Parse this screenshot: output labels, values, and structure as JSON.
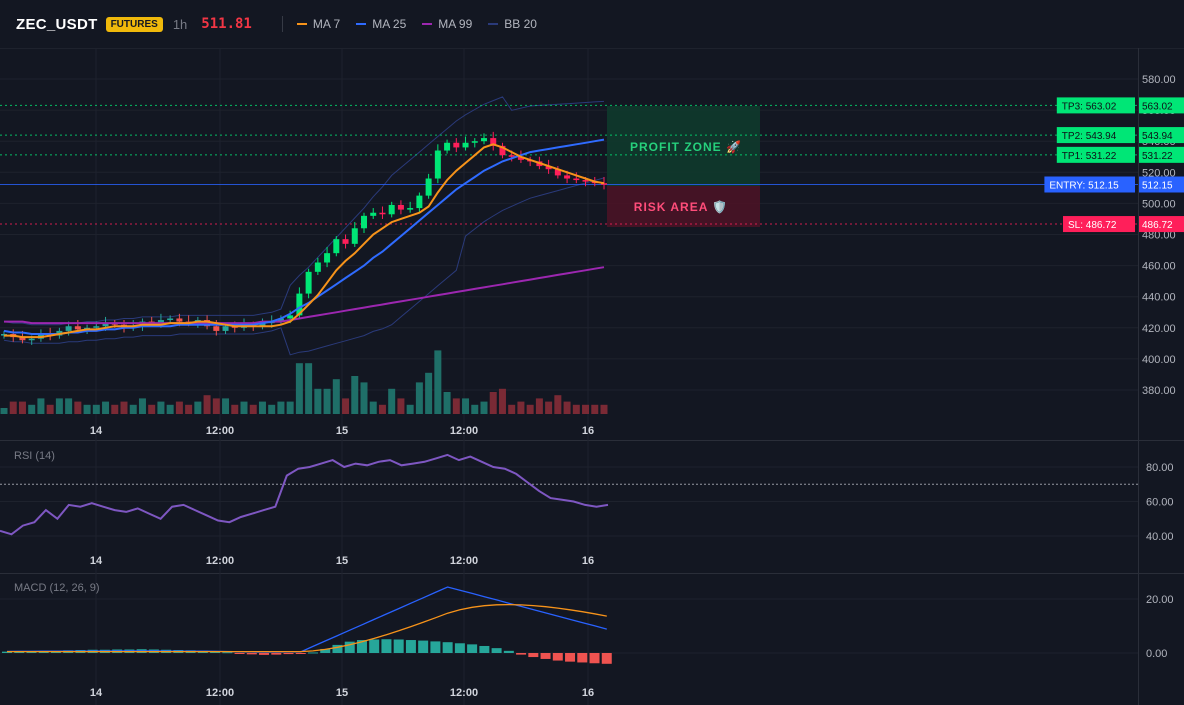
{
  "header": {
    "symbol": "ZEC_USDT",
    "badge": "FUTURES",
    "timeframe": "1h",
    "last_price": "511.81",
    "legend": [
      {
        "label": "MA 7",
        "color": "#f7931a"
      },
      {
        "label": "MA 25",
        "color": "#2f6bff"
      },
      {
        "label": "MA 99",
        "color": "#9c27b0"
      },
      {
        "label": "BB 20",
        "color": "#2a3a7a"
      }
    ]
  },
  "colors": {
    "background": "#131722",
    "up": "#26a69a",
    "down": "#ef5350",
    "up_bright": "#00e676",
    "down_bright": "#ff1f5a",
    "grid": "#1e222d",
    "entry": "#2962ff",
    "sl": "#ff1f5a",
    "tp": "#00e676"
  },
  "panes": {
    "price": {
      "name": "",
      "y_ticks": [
        "580.00",
        "560.00",
        "540.00",
        "520.00",
        "500.00",
        "480.00",
        "460.00",
        "440.00",
        "420.00",
        "400.00",
        "380.00"
      ]
    },
    "rsi": {
      "name": "RSI (14)",
      "y_ticks": [
        "80.00",
        "60.00",
        "40.00"
      ],
      "level": 70
    },
    "macd": {
      "name": "MACD (12, 26, 9)",
      "y_ticks": [
        "20.00",
        "0.00"
      ]
    }
  },
  "x_axis": [
    "14",
    "12:00",
    "15",
    "12:00",
    "16"
  ],
  "zones": {
    "profit": "PROFIT ZONE 🚀",
    "risk": "RISK AREA 🛡️"
  },
  "levels": [
    {
      "name": "tp3",
      "left": "TP3: 563.02",
      "right": "563.02",
      "value": 563.02,
      "color": "#00e676",
      "text": "#0d1117"
    },
    {
      "name": "tp2",
      "left": "TP2: 543.94",
      "right": "543.94",
      "value": 543.94,
      "color": "#00e676",
      "text": "#0d1117"
    },
    {
      "name": "tp1",
      "left": "TP1: 531.22",
      "right": "531.22",
      "value": 531.22,
      "color": "#00e676",
      "text": "#0d1117"
    },
    {
      "name": "entry",
      "left": "ENTRY: 512.15",
      "right": "512.15",
      "value": 512.15,
      "color": "#2962ff",
      "text": "#ffffff"
    },
    {
      "name": "sl",
      "left": "SL: 486.72",
      "right": "486.72",
      "value": 486.72,
      "color": "#ff1f5a",
      "text": "#ffffff"
    }
  ],
  "chart_data": {
    "type": "candlestick",
    "timeframe": "1h",
    "candles_close": [
      416,
      414,
      412,
      413,
      416,
      415,
      418,
      421,
      419,
      420,
      421,
      423,
      422,
      420,
      421,
      424,
      423,
      425,
      426,
      424,
      423,
      425,
      421,
      418,
      421,
      420,
      422,
      421,
      423,
      424,
      426,
      428,
      442,
      456,
      462,
      468,
      477,
      474,
      484,
      492,
      494,
      493,
      499,
      496,
      497,
      505,
      516,
      534,
      539,
      536,
      539,
      540,
      542,
      537,
      531,
      530,
      528,
      527,
      524,
      522,
      518,
      516,
      515,
      514,
      513,
      512
    ],
    "ma7": [
      415,
      415,
      414,
      414,
      414,
      415,
      416,
      417,
      418,
      419,
      419,
      420,
      421,
      421,
      421,
      422,
      422,
      422,
      423,
      423,
      423,
      424,
      424,
      423,
      422,
      421,
      421,
      421,
      421,
      421,
      422,
      424,
      429,
      435,
      441,
      449,
      457,
      463,
      468,
      474,
      480,
      484,
      488,
      490,
      492,
      494,
      498,
      507,
      515,
      521,
      526,
      531,
      536,
      538,
      536,
      533,
      530,
      528,
      526,
      524,
      522,
      520,
      518,
      516,
      514,
      513
    ],
    "ma25": [
      418,
      417,
      417,
      416,
      416,
      416,
      416,
      417,
      417,
      418,
      418,
      419,
      419,
      420,
      420,
      421,
      421,
      421,
      421,
      422,
      422,
      422,
      422,
      422,
      422,
      422,
      422,
      422,
      423,
      424,
      426,
      429,
      433,
      436,
      440,
      444,
      448,
      452,
      456,
      460,
      465,
      469,
      474,
      479,
      484,
      489,
      494,
      499,
      504,
      509,
      513,
      517,
      521,
      524,
      527,
      529,
      531,
      533,
      534,
      535,
      536,
      537,
      538,
      539,
      540,
      541
    ],
    "ma99": [
      424,
      424,
      424,
      423,
      423,
      423,
      423,
      423,
      423,
      423,
      423,
      423,
      423,
      423,
      423,
      423,
      423,
      423,
      423,
      423,
      423,
      423,
      423,
      423,
      423,
      423,
      423,
      423,
      424,
      424,
      424,
      425,
      426,
      427,
      428,
      429,
      430,
      431,
      432,
      433,
      434,
      435,
      436,
      437,
      438,
      439,
      440,
      441,
      442,
      443,
      444,
      445,
      446,
      447,
      448,
      449,
      450,
      451,
      452,
      453,
      454,
      455,
      456,
      457,
      458,
      459
    ],
    "rsi": [
      43,
      41,
      46,
      48,
      55,
      50,
      58,
      57,
      59,
      57,
      55,
      54,
      56,
      53,
      50,
      57,
      58,
      55,
      52,
      49,
      48,
      51,
      53,
      55,
      57,
      75,
      79,
      80,
      82,
      84,
      80,
      82,
      81,
      83,
      84,
      81,
      82,
      83,
      85,
      87,
      84,
      86,
      83,
      80,
      79,
      76,
      71,
      66,
      62,
      61,
      60,
      58,
      57,
      58
    ],
    "macd_hist": [
      0.5,
      0.6,
      0.7,
      0.8,
      0.9,
      1.0,
      1.1,
      1.2,
      1.2,
      1.3,
      1.3,
      1.4,
      1.3,
      1.2,
      1.1,
      1.0,
      0.9,
      0.6,
      0.3,
      -0.2,
      -0.5,
      -0.7,
      -0.6,
      -0.4,
      -0.2,
      0.2,
      1.5,
      3.0,
      4.2,
      4.8,
      5.0,
      5.1,
      5.0,
      4.8,
      4.6,
      4.3,
      4.0,
      3.6,
      3.2,
      2.6,
      1.8,
      0.8,
      -0.6,
      -1.5,
      -2.2,
      -2.8,
      -3.2,
      -3.5,
      -3.8,
      -4.0
    ]
  }
}
